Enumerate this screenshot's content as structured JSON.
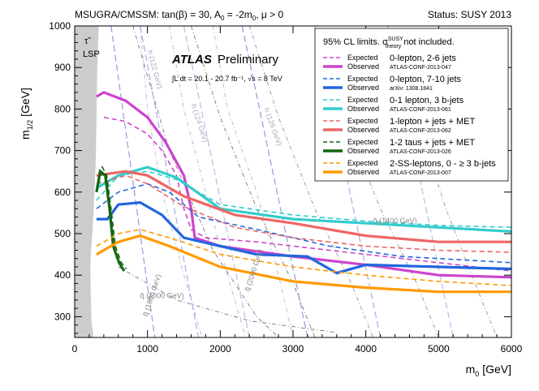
{
  "chart_data": {
    "type": "line",
    "header_left": "MSUGRA/CMSSM: tan(β) = 30, A",
    "header_left_sub": "0",
    "header_left_rest": " = -2m",
    "header_left_sub2": "0",
    "header_left_end": ", μ > 0",
    "header_right": "Status: SUSY 2013",
    "xlabel": "m",
    "xlabel_sub": "0",
    "xlabel_unit": " [GeV]",
    "ylabel": "m",
    "ylabel_sub": "1/2",
    "ylabel_unit": " [GeV]",
    "xlim": [
      0,
      6000
    ],
    "ylim": [
      250,
      1000
    ],
    "xticks": [
      0,
      1000,
      2000,
      3000,
      4000,
      5000,
      6000
    ],
    "yticks": [
      300,
      400,
      500,
      600,
      700,
      800,
      900,
      1000
    ],
    "atlas_label": "ATLAS",
    "atlas_sub": "Preliminary",
    "lumi_text": "∫L dt = 20.1 - 20.7 fb⁻¹, √s = 8 TeV",
    "lsp_label": "LSP",
    "stau_label": "τ̃",
    "legend_title": "95% CL limits. σ",
    "legend_title_sup": "SUSY",
    "legend_title_sub": "theory",
    "legend_title_end": " not included.",
    "expected_label": "Expected",
    "observed_label": "Observed",
    "lsp_region": [
      [
        260,
        250
      ],
      [
        230,
        290
      ],
      [
        220,
        370
      ],
      [
        215,
        430
      ],
      [
        260,
        550
      ],
      [
        290,
        680
      ],
      [
        300,
        780
      ],
      [
        310,
        900
      ],
      [
        330,
        1000
      ]
    ],
    "series": [
      {
        "name": "0-lepton, 2-6 jets",
        "ref": "ATLAS-CONF-2013-047",
        "color": "#cc44cc",
        "expected": [
          [
            400,
            780
          ],
          [
            700,
            770
          ],
          [
            1000,
            740
          ],
          [
            1200,
            700
          ],
          [
            1400,
            640
          ],
          [
            1500,
            560
          ],
          [
            1600,
            510
          ],
          [
            1800,
            490
          ],
          [
            2500,
            480
          ],
          [
            3500,
            460
          ],
          [
            4500,
            440
          ],
          [
            6000,
            410
          ]
        ],
        "observed": [
          [
            300,
            830
          ],
          [
            400,
            840
          ],
          [
            700,
            820
          ],
          [
            1000,
            780
          ],
          [
            1250,
            720
          ],
          [
            1500,
            640
          ],
          [
            1600,
            560
          ],
          [
            1650,
            490
          ],
          [
            2000,
            470
          ],
          [
            3000,
            445
          ],
          [
            4000,
            425
          ],
          [
            5000,
            400
          ],
          [
            6000,
            395
          ]
        ]
      },
      {
        "name": "0-lepton, 7-10 jets",
        "ref": "arXiv: 1308.1841",
        "color": "#2266dd",
        "expected": [
          [
            300,
            560
          ],
          [
            600,
            600
          ],
          [
            1000,
            620
          ],
          [
            1300,
            600
          ],
          [
            1700,
            540
          ],
          [
            2500,
            510
          ],
          [
            3500,
            470
          ],
          [
            4500,
            445
          ],
          [
            6000,
            430
          ]
        ],
        "observed": [
          [
            300,
            535
          ],
          [
            450,
            535
          ],
          [
            600,
            570
          ],
          [
            900,
            575
          ],
          [
            1200,
            545
          ],
          [
            1500,
            490
          ],
          [
            2000,
            470
          ],
          [
            2500,
            450
          ],
          [
            3200,
            445
          ],
          [
            3600,
            405
          ],
          [
            4000,
            425
          ],
          [
            5000,
            420
          ],
          [
            6000,
            415
          ]
        ]
      },
      {
        "name": "0-1 lepton, 3 b-jets",
        "ref": "ATLAS-CONF-2013-061",
        "color": "#33cccc",
        "expected": [
          [
            300,
            580
          ],
          [
            600,
            640
          ],
          [
            1000,
            650
          ],
          [
            1400,
            630
          ],
          [
            2000,
            570
          ],
          [
            3000,
            545
          ],
          [
            4000,
            530
          ],
          [
            5000,
            520
          ],
          [
            6000,
            515
          ]
        ],
        "observed": [
          [
            300,
            610
          ],
          [
            600,
            640
          ],
          [
            1000,
            660
          ],
          [
            1400,
            635
          ],
          [
            2000,
            560
          ],
          [
            3000,
            535
          ],
          [
            4000,
            525
          ],
          [
            5000,
            515
          ],
          [
            6000,
            505
          ]
        ]
      },
      {
        "name": "1-lepton + jets + MET",
        "ref": "ATLAS-CONF-2013-062",
        "color": "#ee6666",
        "expected": [
          [
            300,
            620
          ],
          [
            700,
            640
          ],
          [
            1000,
            620
          ],
          [
            1500,
            565
          ],
          [
            2200,
            515
          ],
          [
            3000,
            490
          ],
          [
            4000,
            470
          ],
          [
            5000,
            460
          ],
          [
            6000,
            455
          ]
        ],
        "observed": [
          [
            300,
            640
          ],
          [
            700,
            650
          ],
          [
            1000,
            640
          ],
          [
            1500,
            590
          ],
          [
            2200,
            545
          ],
          [
            3000,
            525
          ],
          [
            4000,
            495
          ],
          [
            5000,
            480
          ],
          [
            6000,
            480
          ]
        ]
      },
      {
        "name": "1-2 taus + jets + MET",
        "ref": "ATLAS-CONF-2013-026",
        "color": "#116611",
        "expected": [
          [
            330,
            620
          ],
          [
            380,
            660
          ],
          [
            440,
            640
          ],
          [
            500,
            560
          ],
          [
            560,
            470
          ],
          [
            640,
            430
          ],
          [
            710,
            415
          ]
        ],
        "observed": [
          [
            300,
            600
          ],
          [
            350,
            650
          ],
          [
            420,
            640
          ],
          [
            480,
            560
          ],
          [
            530,
            470
          ],
          [
            610,
            430
          ],
          [
            680,
            410
          ]
        ]
      },
      {
        "name": "2-SS-leptons, 0 - ≥ 3 b-jets",
        "ref": "ATLAS-CONF-2013-007",
        "color": "#ff9900",
        "expected": [
          [
            300,
            470
          ],
          [
            600,
            500
          ],
          [
            900,
            510
          ],
          [
            1300,
            490
          ],
          [
            2000,
            450
          ],
          [
            3000,
            420
          ],
          [
            4000,
            400
          ],
          [
            5000,
            385
          ],
          [
            6000,
            375
          ]
        ],
        "observed": [
          [
            300,
            450
          ],
          [
            600,
            480
          ],
          [
            900,
            495
          ],
          [
            1300,
            470
          ],
          [
            2000,
            420
          ],
          [
            3000,
            385
          ],
          [
            4000,
            370
          ],
          [
            5000,
            360
          ],
          [
            6000,
            360
          ]
        ]
      }
    ],
    "squark_labels": [
      "q̃ (1000 GeV)",
      "q̃ (1600 GeV)",
      "q̃ (2000 GeV)",
      "q̃ (1400 GeV)"
    ],
    "gluino_labels": [
      "h (122 GeV)",
      "h (124 GeV)",
      "h (126 GeV)"
    ]
  }
}
